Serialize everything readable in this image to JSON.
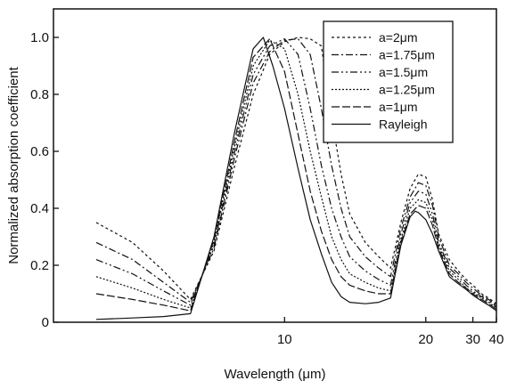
{
  "chart_data": {
    "type": "line",
    "title": "",
    "xlabel": "Wavelength (μm)",
    "ylabel": "Normalized absorption coefficient",
    "x_scale": "reciprocal",
    "xlim": [
      5.5,
      40
    ],
    "ylim": [
      0,
      1.1
    ],
    "x_ticks": [
      10,
      20,
      30,
      40
    ],
    "y_ticks": [
      0,
      0.2,
      0.4,
      0.6,
      0.8,
      1.0
    ],
    "y_tick_labels": [
      "0",
      "0.2",
      "0.4",
      "0.6",
      "0.8",
      "1.0"
    ],
    "grid": false,
    "legend_position": "top-right",
    "series": [
      {
        "name": "a=2μm",
        "dash": "3,3",
        "points": [
          [
            6,
            0.35
          ],
          [
            6.5,
            0.28
          ],
          [
            7,
            0.18
          ],
          [
            7.5,
            0.08
          ],
          [
            8,
            0.25
          ],
          [
            8.5,
            0.55
          ],
          [
            9,
            0.8
          ],
          [
            9.5,
            0.94
          ],
          [
            10,
            0.985
          ],
          [
            10.5,
            1.0
          ],
          [
            11,
            0.995
          ],
          [
            11.5,
            0.97
          ],
          [
            12,
            0.72
          ],
          [
            12.5,
            0.52
          ],
          [
            13,
            0.38
          ],
          [
            14,
            0.28
          ],
          [
            15,
            0.23
          ],
          [
            16,
            0.19
          ],
          [
            17,
            0.35
          ],
          [
            18,
            0.47
          ],
          [
            19,
            0.52
          ],
          [
            20,
            0.51
          ],
          [
            21,
            0.43
          ],
          [
            22,
            0.31
          ],
          [
            24,
            0.22
          ],
          [
            26,
            0.18
          ],
          [
            28,
            0.15
          ],
          [
            30,
            0.13
          ],
          [
            33,
            0.1
          ],
          [
            36,
            0.085
          ],
          [
            40,
            0.065
          ]
        ]
      },
      {
        "name": "a=1.75μm",
        "dash": "8,3,2,3",
        "points": [
          [
            6,
            0.28
          ],
          [
            6.5,
            0.22
          ],
          [
            7,
            0.14
          ],
          [
            7.5,
            0.07
          ],
          [
            8,
            0.26
          ],
          [
            8.5,
            0.58
          ],
          [
            9,
            0.84
          ],
          [
            9.5,
            0.95
          ],
          [
            10,
            0.99
          ],
          [
            10.5,
            0.995
          ],
          [
            11,
            0.94
          ],
          [
            11.5,
            0.75
          ],
          [
            12,
            0.55
          ],
          [
            12.5,
            0.4
          ],
          [
            13,
            0.3
          ],
          [
            14,
            0.23
          ],
          [
            15,
            0.19
          ],
          [
            16,
            0.16
          ],
          [
            17,
            0.33
          ],
          [
            18,
            0.44
          ],
          [
            19,
            0.49
          ],
          [
            20,
            0.48
          ],
          [
            21,
            0.41
          ],
          [
            22,
            0.3
          ],
          [
            24,
            0.2
          ],
          [
            26,
            0.17
          ],
          [
            28,
            0.14
          ],
          [
            30,
            0.12
          ],
          [
            33,
            0.095
          ],
          [
            36,
            0.08
          ],
          [
            40,
            0.06
          ]
        ]
      },
      {
        "name": "a=1.5μm",
        "dash": "8,3,2,3,2,3",
        "points": [
          [
            6,
            0.22
          ],
          [
            6.5,
            0.17
          ],
          [
            7,
            0.11
          ],
          [
            7.5,
            0.06
          ],
          [
            8,
            0.27
          ],
          [
            8.5,
            0.6
          ],
          [
            9,
            0.87
          ],
          [
            9.5,
            0.97
          ],
          [
            10,
            0.995
          ],
          [
            10.5,
            0.94
          ],
          [
            11,
            0.75
          ],
          [
            11.5,
            0.55
          ],
          [
            12,
            0.4
          ],
          [
            12.5,
            0.3
          ],
          [
            13,
            0.23
          ],
          [
            14,
            0.18
          ],
          [
            15,
            0.15
          ],
          [
            16,
            0.13
          ],
          [
            17,
            0.31
          ],
          [
            18,
            0.42
          ],
          [
            19,
            0.46
          ],
          [
            20,
            0.45
          ],
          [
            21,
            0.38
          ],
          [
            22,
            0.28
          ],
          [
            24,
            0.19
          ],
          [
            26,
            0.16
          ],
          [
            28,
            0.13
          ],
          [
            30,
            0.11
          ],
          [
            33,
            0.09
          ],
          [
            36,
            0.075
          ],
          [
            40,
            0.055
          ]
        ]
      },
      {
        "name": "a=1.25μm",
        "dash": "2,2",
        "points": [
          [
            6,
            0.16
          ],
          [
            6.5,
            0.12
          ],
          [
            7,
            0.08
          ],
          [
            7.5,
            0.05
          ],
          [
            8,
            0.28
          ],
          [
            8.5,
            0.62
          ],
          [
            9,
            0.9
          ],
          [
            9.5,
            0.99
          ],
          [
            10,
            0.96
          ],
          [
            10.5,
            0.8
          ],
          [
            11,
            0.6
          ],
          [
            11.5,
            0.44
          ],
          [
            12,
            0.3
          ],
          [
            12.5,
            0.22
          ],
          [
            13,
            0.17
          ],
          [
            14,
            0.14
          ],
          [
            15,
            0.12
          ],
          [
            16,
            0.11
          ],
          [
            17,
            0.29
          ],
          [
            18,
            0.4
          ],
          [
            19,
            0.43
          ],
          [
            20,
            0.42
          ],
          [
            21,
            0.36
          ],
          [
            22,
            0.27
          ],
          [
            24,
            0.18
          ],
          [
            26,
            0.15
          ],
          [
            28,
            0.12
          ],
          [
            30,
            0.105
          ],
          [
            33,
            0.085
          ],
          [
            36,
            0.07
          ],
          [
            40,
            0.05
          ]
        ]
      },
      {
        "name": "a=1μm",
        "dash": "9,3",
        "points": [
          [
            6,
            0.1
          ],
          [
            6.5,
            0.08
          ],
          [
            7,
            0.06
          ],
          [
            7.5,
            0.04
          ],
          [
            8,
            0.29
          ],
          [
            8.5,
            0.64
          ],
          [
            9,
            0.93
          ],
          [
            9.5,
            0.995
          ],
          [
            10,
            0.88
          ],
          [
            10.5,
            0.66
          ],
          [
            11,
            0.46
          ],
          [
            11.5,
            0.32
          ],
          [
            12,
            0.22
          ],
          [
            12.5,
            0.16
          ],
          [
            13,
            0.13
          ],
          [
            14,
            0.11
          ],
          [
            15,
            0.1
          ],
          [
            16,
            0.1
          ],
          [
            17,
            0.28
          ],
          [
            18,
            0.38
          ],
          [
            19,
            0.41
          ],
          [
            20,
            0.4
          ],
          [
            21,
            0.34
          ],
          [
            22,
            0.26
          ],
          [
            24,
            0.17
          ],
          [
            26,
            0.14
          ],
          [
            28,
            0.12
          ],
          [
            30,
            0.1
          ],
          [
            33,
            0.08
          ],
          [
            36,
            0.065
          ],
          [
            40,
            0.045
          ]
        ]
      },
      {
        "name": "Rayleigh",
        "dash": "",
        "points": [
          [
            6,
            0.01
          ],
          [
            6.5,
            0.015
          ],
          [
            7,
            0.02
          ],
          [
            7.5,
            0.03
          ],
          [
            8,
            0.3
          ],
          [
            8.5,
            0.67
          ],
          [
            9,
            0.96
          ],
          [
            9.3,
            1.0
          ],
          [
            9.6,
            0.9
          ],
          [
            10,
            0.75
          ],
          [
            10.5,
            0.54
          ],
          [
            11,
            0.36
          ],
          [
            11.5,
            0.24
          ],
          [
            12,
            0.14
          ],
          [
            12.5,
            0.09
          ],
          [
            13,
            0.07
          ],
          [
            14,
            0.065
          ],
          [
            15,
            0.07
          ],
          [
            16,
            0.085
          ],
          [
            17,
            0.27
          ],
          [
            18,
            0.37
          ],
          [
            18.6,
            0.39
          ],
          [
            19,
            0.385
          ],
          [
            20,
            0.36
          ],
          [
            21,
            0.31
          ],
          [
            22,
            0.25
          ],
          [
            24,
            0.16
          ],
          [
            26,
            0.135
          ],
          [
            28,
            0.115
          ],
          [
            30,
            0.095
          ],
          [
            33,
            0.075
          ],
          [
            36,
            0.06
          ],
          [
            40,
            0.04
          ]
        ]
      }
    ]
  }
}
